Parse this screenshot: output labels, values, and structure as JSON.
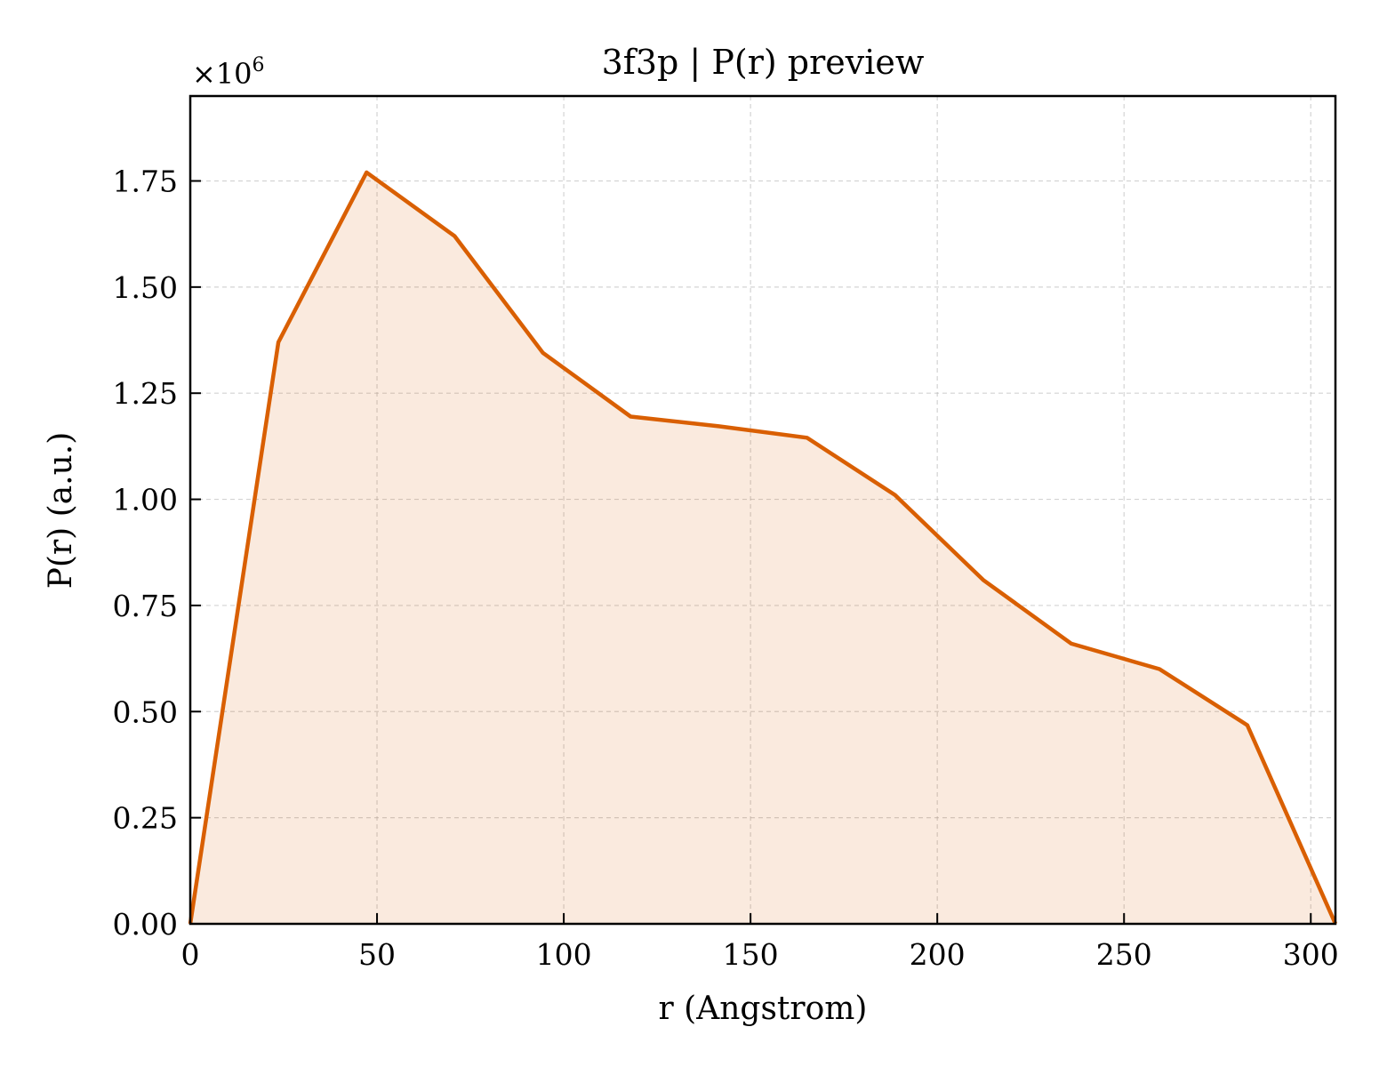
{
  "chart_data": {
    "type": "area",
    "title": "3f3p | P(r) preview",
    "xlabel": "r (Angstrom)",
    "ylabel": "P(r) (a.u.)",
    "y_multiplier_label": "×10",
    "y_multiplier_exponent": "6",
    "xlim": [
      0,
      306.6
    ],
    "ylim": [
      0,
      1.95
    ],
    "x_ticks": [
      0,
      50,
      100,
      150,
      200,
      250,
      300
    ],
    "x_tick_labels": [
      "0",
      "50",
      "100",
      "150",
      "200",
      "250",
      "300"
    ],
    "y_ticks": [
      0,
      0.25,
      0.5,
      0.75,
      1.0,
      1.25,
      1.5,
      1.75
    ],
    "y_tick_labels": [
      "0.00",
      "0.25",
      "0.50",
      "0.75",
      "1.00",
      "1.25",
      "1.50",
      "1.75"
    ],
    "grid": true,
    "series": [
      {
        "color": "#d95f02",
        "fill_color": "#d95f02",
        "fill_opacity": 0.13,
        "x": [
          0,
          23.6,
          47.2,
          70.8,
          94.4,
          117.9,
          141.5,
          165.1,
          188.7,
          212.3,
          235.9,
          259.5,
          283.0,
          306.6
        ],
        "y": [
          0,
          1.37,
          1.77,
          1.62,
          1.345,
          1.195,
          1.172,
          1.145,
          1.01,
          0.81,
          0.66,
          0.6,
          0.468,
          0
        ]
      }
    ]
  }
}
